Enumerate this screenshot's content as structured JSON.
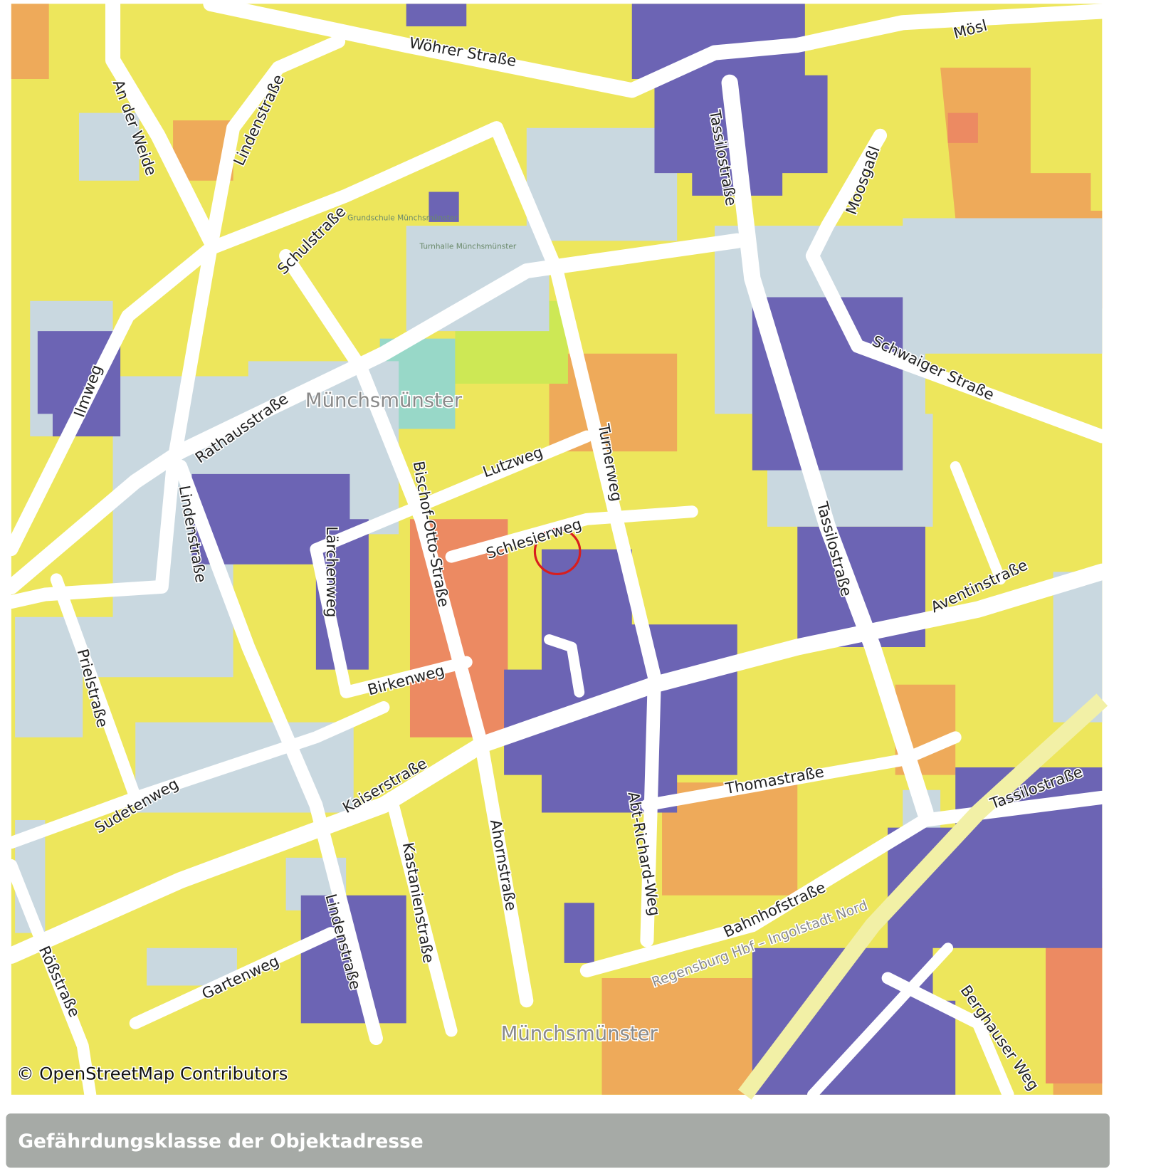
{
  "map": {
    "labels": [
      "Wöhrer Straße",
      "Mösl",
      "An der Weide",
      "Lindenstraße",
      "Tassilostraße",
      "Moosgaßl",
      "Schulstraße",
      "Ilmweg",
      "Rathausstraße",
      "Münchsmünster",
      "Schwaiger Straße",
      "Turnerweg",
      "Lutzweg",
      "Bischof-Otto-Straße",
      "Lindenstraße",
      "Lärchenweg",
      "Schlesierweg",
      "Tassilostraße",
      "Aventinstraße",
      "Prielstraße",
      "Birkenweg",
      "Sudetenweg",
      "Kaiserstraße",
      "Thomastraße",
      "Tassilostraße",
      "Abt-Richard-Weg",
      "Ahornstraße",
      "Kastanienstraße",
      "Lindenstraße",
      "Bahnhofstraße",
      "Rößstraße",
      "Gartenweg",
      "Regensburg Hbf – Ingolstadt Nord",
      "Berghauser Weg",
      "Münchsmünster",
      "Grundschule Münchsmünster",
      "Turnhalle Münchsmünster"
    ],
    "attribution": "© OpenStreetMap Contributors"
  },
  "panel": {
    "title": "Gefährdungsklasse der Objektadresse"
  }
}
